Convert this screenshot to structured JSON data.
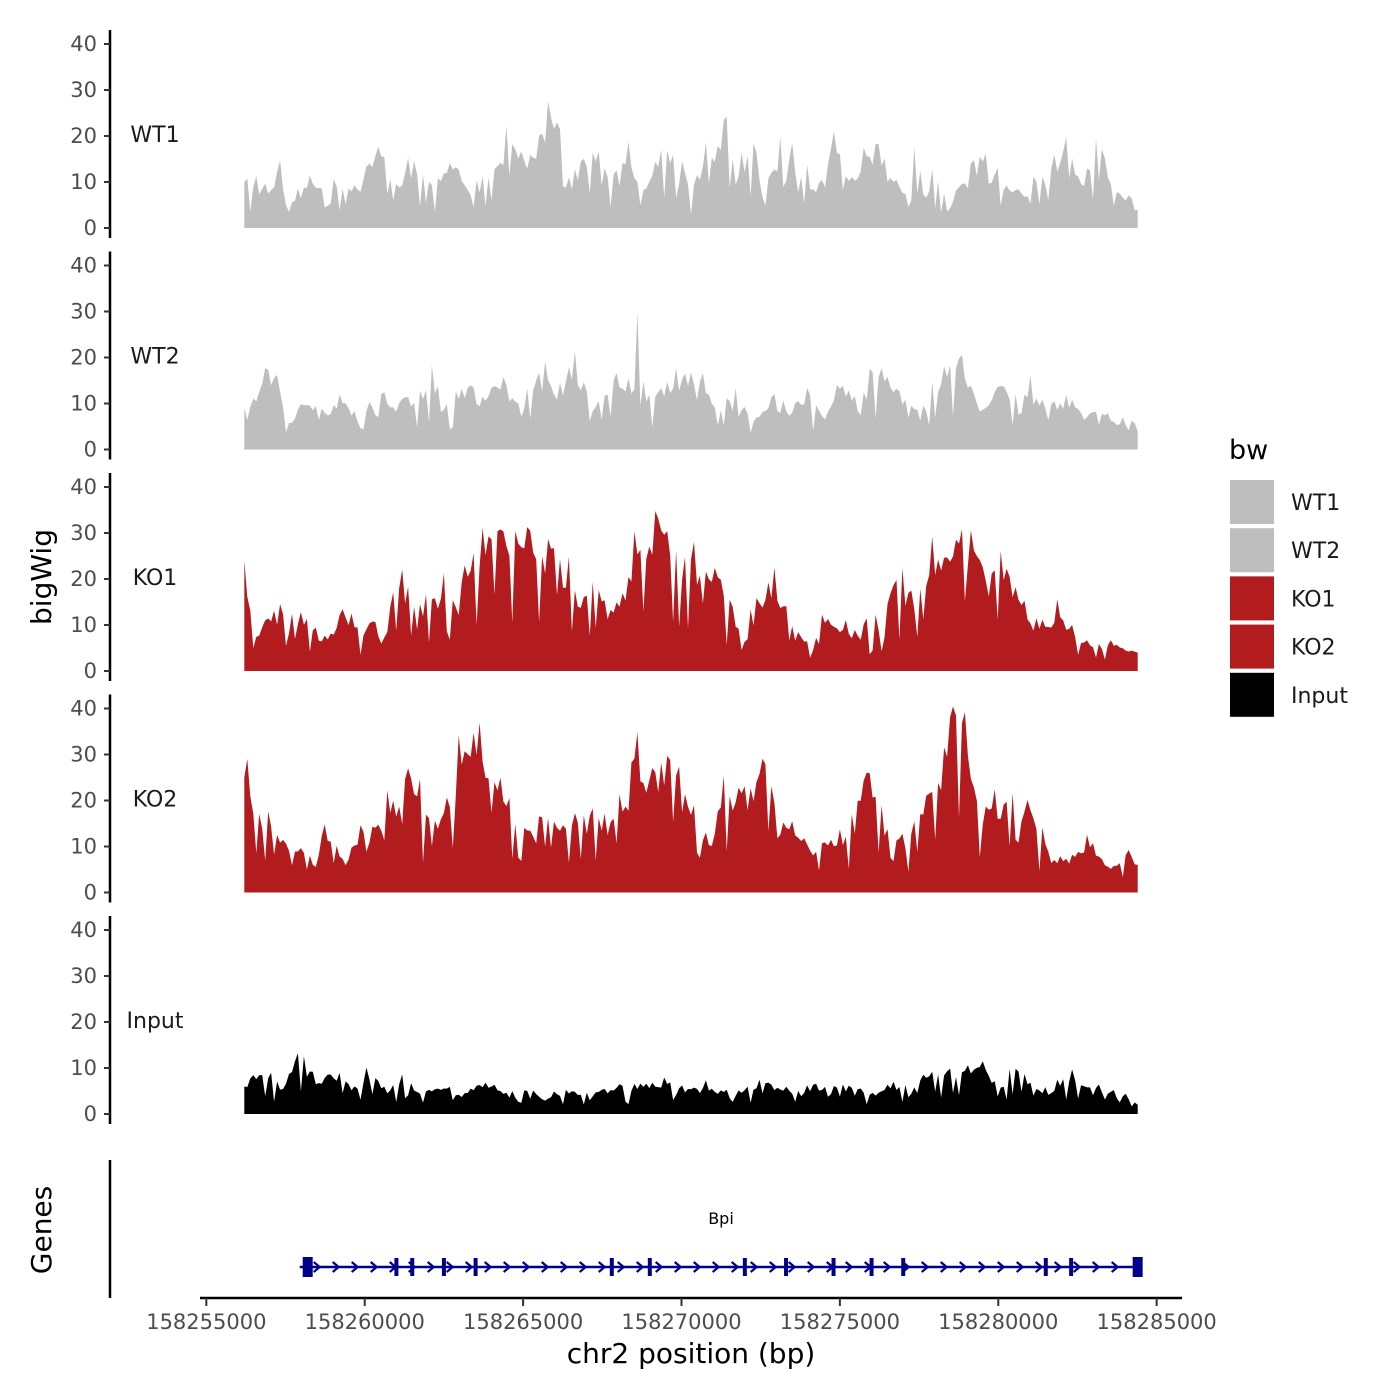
{
  "chart_data": {
    "type": "area",
    "ylabel": "bigWig",
    "xlabel": "chr2 position (bp)",
    "ylim": [
      0,
      40
    ],
    "yticks": [
      0,
      10,
      20,
      30,
      40
    ],
    "xlim": [
      158254800,
      158285800
    ],
    "xticks": [
      158255000,
      158260000,
      158265000,
      158270000,
      158275000,
      158280000,
      158285000
    ],
    "xtick_labels": [
      "158255000",
      "158260000",
      "158265000",
      "158270000",
      "158275000",
      "158280000",
      "158285000"
    ],
    "data_range": [
      158256200,
      158284400
    ],
    "tracks": [
      {
        "name": "WT1",
        "color": "#bebebe",
        "profile": [
          [
            0,
            10
          ],
          [
            2,
            8
          ],
          [
            4,
            11
          ],
          [
            5,
            3
          ],
          [
            7,
            10
          ],
          [
            9,
            8
          ],
          [
            11,
            10
          ],
          [
            13,
            9
          ],
          [
            15,
            18
          ],
          [
            17,
            10
          ],
          [
            19,
            13
          ],
          [
            21,
            9
          ],
          [
            23,
            14
          ],
          [
            25,
            8
          ],
          [
            27,
            12
          ],
          [
            30,
            18
          ],
          [
            32,
            15
          ],
          [
            34,
            22
          ],
          [
            35,
            26
          ],
          [
            36,
            10
          ],
          [
            38,
            14
          ],
          [
            40,
            18
          ],
          [
            41,
            10
          ],
          [
            43,
            15
          ],
          [
            45,
            9
          ],
          [
            47,
            18
          ],
          [
            49,
            14
          ],
          [
            50,
            8
          ],
          [
            52,
            15
          ],
          [
            54,
            22
          ],
          [
            55,
            10
          ],
          [
            57,
            18
          ],
          [
            58,
            8
          ],
          [
            60,
            16
          ],
          [
            62,
            13
          ],
          [
            64,
            8
          ],
          [
            66,
            19
          ],
          [
            68,
            10
          ],
          [
            70,
            16
          ],
          [
            72,
            12
          ],
          [
            74,
            8
          ],
          [
            75,
            14
          ],
          [
            77,
            12
          ],
          [
            79,
            6
          ],
          [
            81,
            10
          ],
          [
            83,
            16
          ],
          [
            85,
            9
          ],
          [
            87,
            7
          ],
          [
            90,
            11
          ],
          [
            92,
            16
          ],
          [
            94,
            10
          ],
          [
            96,
            17
          ],
          [
            97,
            8
          ],
          [
            100,
            4
          ]
        ]
      },
      {
        "name": "WT2",
        "color": "#bebebe",
        "profile": [
          [
            0,
            9
          ],
          [
            2,
            13
          ],
          [
            3,
            17
          ],
          [
            5,
            5
          ],
          [
            7,
            11
          ],
          [
            9,
            8
          ],
          [
            11,
            12
          ],
          [
            13,
            5
          ],
          [
            15,
            13
          ],
          [
            17,
            10
          ],
          [
            19,
            11
          ],
          [
            21,
            15
          ],
          [
            23,
            8
          ],
          [
            25,
            14
          ],
          [
            27,
            10
          ],
          [
            29,
            15
          ],
          [
            31,
            8
          ],
          [
            33,
            16
          ],
          [
            35,
            12
          ],
          [
            37,
            18
          ],
          [
            39,
            10
          ],
          [
            41,
            14
          ],
          [
            43,
            14
          ],
          [
            44,
            27
          ],
          [
            45,
            11
          ],
          [
            47,
            13
          ],
          [
            49,
            18
          ],
          [
            51,
            14
          ],
          [
            53,
            9
          ],
          [
            55,
            12
          ],
          [
            57,
            6
          ],
          [
            59,
            11
          ],
          [
            61,
            8
          ],
          [
            63,
            12
          ],
          [
            65,
            8
          ],
          [
            67,
            13
          ],
          [
            69,
            9
          ],
          [
            71,
            17
          ],
          [
            73,
            12
          ],
          [
            75,
            8
          ],
          [
            77,
            11
          ],
          [
            79,
            15
          ],
          [
            80,
            23
          ],
          [
            82,
            9
          ],
          [
            84,
            13
          ],
          [
            86,
            11
          ],
          [
            88,
            12
          ],
          [
            90,
            9
          ],
          [
            92,
            11
          ],
          [
            94,
            7
          ],
          [
            96,
            8
          ],
          [
            98,
            6
          ],
          [
            100,
            4
          ]
        ]
      },
      {
        "name": "KO1",
        "color": "#b21c1f",
        "profile": [
          [
            0,
            24
          ],
          [
            1,
            6
          ],
          [
            3,
            12
          ],
          [
            5,
            11
          ],
          [
            7,
            12
          ],
          [
            9,
            6
          ],
          [
            11,
            13
          ],
          [
            13,
            8
          ],
          [
            15,
            12
          ],
          [
            17,
            16
          ],
          [
            19,
            19
          ],
          [
            21,
            15
          ],
          [
            23,
            18
          ],
          [
            25,
            22
          ],
          [
            27,
            27
          ],
          [
            29,
            30
          ],
          [
            30,
            26
          ],
          [
            31,
            32
          ],
          [
            33,
            26
          ],
          [
            35,
            23
          ],
          [
            37,
            17
          ],
          [
            39,
            16
          ],
          [
            40,
            15
          ],
          [
            41,
            13
          ],
          [
            42,
            12
          ],
          [
            43,
            22
          ],
          [
            45,
            28
          ],
          [
            46,
            37
          ],
          [
            47,
            28
          ],
          [
            49,
            23
          ],
          [
            51,
            21
          ],
          [
            53,
            19
          ],
          [
            55,
            13
          ],
          [
            56,
            5
          ],
          [
            57,
            14
          ],
          [
            59,
            18
          ],
          [
            61,
            12
          ],
          [
            63,
            6
          ],
          [
            65,
            11
          ],
          [
            67,
            9
          ],
          [
            69,
            8
          ],
          [
            71,
            10
          ],
          [
            73,
            18
          ],
          [
            75,
            16
          ],
          [
            77,
            23
          ],
          [
            79,
            27
          ],
          [
            81,
            33
          ],
          [
            83,
            19
          ],
          [
            85,
            22
          ],
          [
            87,
            15
          ],
          [
            89,
            10
          ],
          [
            91,
            12
          ],
          [
            93,
            8
          ],
          [
            95,
            5
          ],
          [
            97,
            6
          ],
          [
            99,
            4
          ],
          [
            100,
            4
          ]
        ]
      },
      {
        "name": "KO2",
        "color": "#b21c1f",
        "profile": [
          [
            0,
            25
          ],
          [
            2,
            14
          ],
          [
            4,
            12
          ],
          [
            6,
            10
          ],
          [
            8,
            6
          ],
          [
            9,
            17
          ],
          [
            11,
            6
          ],
          [
            13,
            12
          ],
          [
            15,
            14
          ],
          [
            17,
            19
          ],
          [
            18,
            26
          ],
          [
            20,
            18
          ],
          [
            22,
            16
          ],
          [
            24,
            26
          ],
          [
            26,
            35
          ],
          [
            28,
            24
          ],
          [
            30,
            19
          ],
          [
            32,
            13
          ],
          [
            34,
            17
          ],
          [
            36,
            13
          ],
          [
            38,
            20
          ],
          [
            40,
            14
          ],
          [
            42,
            22
          ],
          [
            43,
            28
          ],
          [
            45,
            25
          ],
          [
            47,
            26
          ],
          [
            48,
            30
          ],
          [
            50,
            20
          ],
          [
            52,
            10
          ],
          [
            54,
            22
          ],
          [
            56,
            20
          ],
          [
            58,
            27
          ],
          [
            60,
            15
          ],
          [
            62,
            12
          ],
          [
            64,
            9
          ],
          [
            66,
            11
          ],
          [
            68,
            13
          ],
          [
            70,
            27
          ],
          [
            72,
            15
          ],
          [
            74,
            10
          ],
          [
            76,
            18
          ],
          [
            78,
            26
          ],
          [
            80,
            42
          ],
          [
            81,
            28
          ],
          [
            83,
            16
          ],
          [
            85,
            18
          ],
          [
            87,
            22
          ],
          [
            89,
            13
          ],
          [
            91,
            7
          ],
          [
            93,
            8
          ],
          [
            95,
            10
          ],
          [
            97,
            5
          ],
          [
            99,
            8
          ],
          [
            100,
            6
          ]
        ]
      },
      {
        "name": "Input",
        "color": "#000000",
        "profile": [
          [
            0,
            6
          ],
          [
            2,
            9
          ],
          [
            4,
            5
          ],
          [
            6,
            12
          ],
          [
            8,
            7
          ],
          [
            10,
            9
          ],
          [
            12,
            6
          ],
          [
            14,
            8
          ],
          [
            16,
            5
          ],
          [
            18,
            7
          ],
          [
            20,
            5
          ],
          [
            22,
            6
          ],
          [
            24,
            4
          ],
          [
            26,
            6
          ],
          [
            28,
            5
          ],
          [
            30,
            4
          ],
          [
            32,
            5
          ],
          [
            34,
            4
          ],
          [
            36,
            5
          ],
          [
            38,
            4
          ],
          [
            40,
            5
          ],
          [
            42,
            6
          ],
          [
            44,
            6
          ],
          [
            46,
            7
          ],
          [
            48,
            6
          ],
          [
            50,
            5
          ],
          [
            52,
            6
          ],
          [
            54,
            4
          ],
          [
            56,
            5
          ],
          [
            58,
            7
          ],
          [
            60,
            6
          ],
          [
            62,
            5
          ],
          [
            64,
            6
          ],
          [
            66,
            5
          ],
          [
            68,
            6
          ],
          [
            70,
            4
          ],
          [
            72,
            5
          ],
          [
            74,
            6
          ],
          [
            76,
            7
          ],
          [
            78,
            10
          ],
          [
            80,
            8
          ],
          [
            82,
            12
          ],
          [
            84,
            7
          ],
          [
            86,
            10
          ],
          [
            88,
            6
          ],
          [
            90,
            5
          ],
          [
            92,
            8
          ],
          [
            94,
            6
          ],
          [
            96,
            5
          ],
          [
            98,
            5
          ],
          [
            100,
            2
          ]
        ]
      }
    ],
    "legend": {
      "title": "bw",
      "placement": "right",
      "entries": [
        {
          "label": "WT1",
          "color": "#bebebe"
        },
        {
          "label": "WT2",
          "color": "#bebebe"
        },
        {
          "label": "KO1",
          "color": "#b21c1f"
        },
        {
          "label": "KO2",
          "color": "#b21c1f"
        },
        {
          "label": "Input",
          "color": "#000000"
        }
      ]
    },
    "genes_panel": {
      "ylabel": "Genes",
      "gene": {
        "name": "Bpi",
        "strand": "+",
        "start": 158258200,
        "end": 158284400,
        "color": "#00008b",
        "exons": [
          158258200,
          158261000,
          158261500,
          158262500,
          158263500,
          158267800,
          158269000,
          158272000,
          158273300,
          158274800,
          158276000,
          158277000,
          158281500,
          158282300,
          158284400
        ]
      }
    }
  }
}
